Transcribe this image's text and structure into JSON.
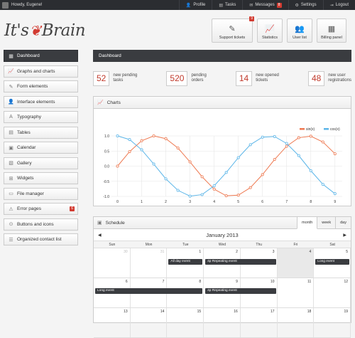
{
  "topbar": {
    "greeting": "Howdy, Eugene!",
    "links": [
      {
        "icon": "user-icon",
        "glyph": "👤",
        "label": "Profile",
        "badge": ""
      },
      {
        "icon": "tasks-icon",
        "glyph": "▤",
        "label": "Tasks",
        "badge": ""
      },
      {
        "icon": "messages-icon",
        "glyph": "✉",
        "label": "Messages",
        "badge": "8"
      },
      {
        "icon": "settings-icon",
        "glyph": "⚙",
        "label": "Settings",
        "badge": ""
      },
      {
        "icon": "logout-icon",
        "glyph": "⇥",
        "label": "Logout",
        "badge": ""
      }
    ]
  },
  "logo": {
    "part1": "It's",
    "part2": "Brain"
  },
  "quick_buttons": [
    {
      "label": "Support tickets",
      "icon": "support-icon",
      "glyph": "✎",
      "badge": "9"
    },
    {
      "label": "Statistics",
      "icon": "statistics-icon",
      "glyph": "📈",
      "badge": ""
    },
    {
      "label": "User list",
      "icon": "users-icon",
      "glyph": "👥",
      "badge": ""
    },
    {
      "label": "Billing panel",
      "icon": "billing-icon",
      "glyph": "▦",
      "badge": ""
    }
  ],
  "sidebar": {
    "items": [
      {
        "label": "Dashboard",
        "icon": "dashboard-icon",
        "glyph": "▦",
        "active": true,
        "badge": ""
      },
      {
        "label": "Graphs and charts",
        "icon": "chart-icon",
        "glyph": "📈",
        "active": false,
        "badge": ""
      },
      {
        "label": "Form elements",
        "icon": "pencil-icon",
        "glyph": "✎",
        "active": false,
        "badge": ""
      },
      {
        "label": "Interface elements",
        "icon": "person-icon",
        "glyph": "👤",
        "active": false,
        "badge": ""
      },
      {
        "label": "Typography",
        "icon": "typography-icon",
        "glyph": "A",
        "active": false,
        "badge": ""
      },
      {
        "label": "Tables",
        "icon": "table-icon",
        "glyph": "▤",
        "active": false,
        "badge": ""
      },
      {
        "label": "Calendar",
        "icon": "calendar-icon",
        "glyph": "▣",
        "active": false,
        "badge": ""
      },
      {
        "label": "Gallery",
        "icon": "gallery-icon",
        "glyph": "▧",
        "active": false,
        "badge": ""
      },
      {
        "label": "Widgets",
        "icon": "widgets-icon",
        "glyph": "⊞",
        "active": false,
        "badge": ""
      },
      {
        "label": "File manager",
        "icon": "folder-icon",
        "glyph": "▭",
        "active": false,
        "badge": ""
      },
      {
        "label": "Error pages",
        "icon": "warning-icon",
        "glyph": "⚠",
        "active": false,
        "badge": "6"
      },
      {
        "label": "Buttons and icons",
        "icon": "buttons-icon",
        "glyph": "⊙",
        "active": false,
        "badge": ""
      },
      {
        "label": "Organized contact list",
        "icon": "contacts-icon",
        "glyph": "☰",
        "active": false,
        "badge": ""
      }
    ]
  },
  "main": {
    "title": "Dashboard",
    "stats": [
      {
        "value": "52",
        "label": "new pending\ntasks"
      },
      {
        "value": "520",
        "label": "pending\norders"
      },
      {
        "value": "14",
        "label": "new opened\ntickets"
      },
      {
        "value": "48",
        "label": "new user\nregistrations"
      }
    ]
  },
  "charts_panel": {
    "title": "Charts"
  },
  "chart_data": {
    "type": "line",
    "title": "",
    "xlabel": "",
    "ylabel": "",
    "xlim": [
      -0.25,
      9.3
    ],
    "ylim": [
      -1.0,
      1.0
    ],
    "xticks": [
      "0",
      "1",
      "2",
      "3",
      "4",
      "5",
      "6",
      "7",
      "8",
      "9"
    ],
    "yticks": [
      "1.0",
      "0.5",
      "0.0",
      "-0.5",
      "-1.0"
    ],
    "legend": "top-right",
    "grid": true,
    "series": [
      {
        "name": "sin(x)",
        "color": "#ee7951",
        "x": [
          0,
          0.5,
          1,
          1.5,
          2,
          2.5,
          3,
          3.5,
          4,
          4.5,
          5,
          5.5,
          6,
          6.5,
          7,
          7.5,
          8,
          8.5,
          9
        ],
        "y": [
          0.0,
          0.48,
          0.84,
          1.0,
          0.91,
          0.6,
          0.14,
          -0.35,
          -0.76,
          -0.98,
          -0.96,
          -0.71,
          -0.28,
          0.22,
          0.66,
          0.94,
          0.99,
          0.8,
          0.41
        ]
      },
      {
        "name": "cos(x)",
        "color": "#5bb5e8",
        "x": [
          0,
          0.5,
          1,
          1.5,
          2,
          2.5,
          3,
          3.5,
          4,
          4.5,
          5,
          5.5,
          6,
          6.5,
          7,
          7.5,
          8,
          8.5,
          9
        ],
        "y": [
          1.0,
          0.88,
          0.54,
          0.07,
          -0.42,
          -0.8,
          -0.99,
          -0.94,
          -0.65,
          -0.21,
          0.28,
          0.71,
          0.96,
          0.98,
          0.75,
          0.35,
          -0.15,
          -0.6,
          -0.91
        ]
      }
    ]
  },
  "schedule": {
    "title": "Schedule",
    "views": [
      {
        "label": "month",
        "active": true
      },
      {
        "label": "week",
        "active": false
      },
      {
        "label": "day",
        "active": false
      }
    ],
    "month": "January 2013",
    "prev": "◀",
    "next": "▶",
    "weekdays": [
      "Sun",
      "Mon",
      "Tue",
      "Wed",
      "Thu",
      "Fri",
      "Sat"
    ],
    "weeks": [
      {
        "days": [
          "30",
          "31",
          "1",
          "2",
          "3",
          "4",
          "5"
        ],
        "gray": [
          0,
          1
        ],
        "today": 5,
        "events": [
          {
            "label": "All day event",
            "start": 2,
            "span": 1
          },
          {
            "label": "4p   Repeating event",
            "start": 3,
            "span": 2
          },
          {
            "label": "Long event",
            "start": 6,
            "span": 1
          }
        ]
      },
      {
        "days": [
          "6",
          "7",
          "8",
          "9",
          "10",
          "11",
          "12"
        ],
        "gray": [],
        "today": -1,
        "events": [
          {
            "label": "Long event",
            "start": 0,
            "span": 3
          },
          {
            "label": "4p   Repeating event",
            "start": 3,
            "span": 2
          }
        ]
      },
      {
        "days": [
          "13",
          "14",
          "15",
          "16",
          "17",
          "18",
          "19"
        ],
        "gray": [],
        "today": -1,
        "events": []
      }
    ]
  }
}
